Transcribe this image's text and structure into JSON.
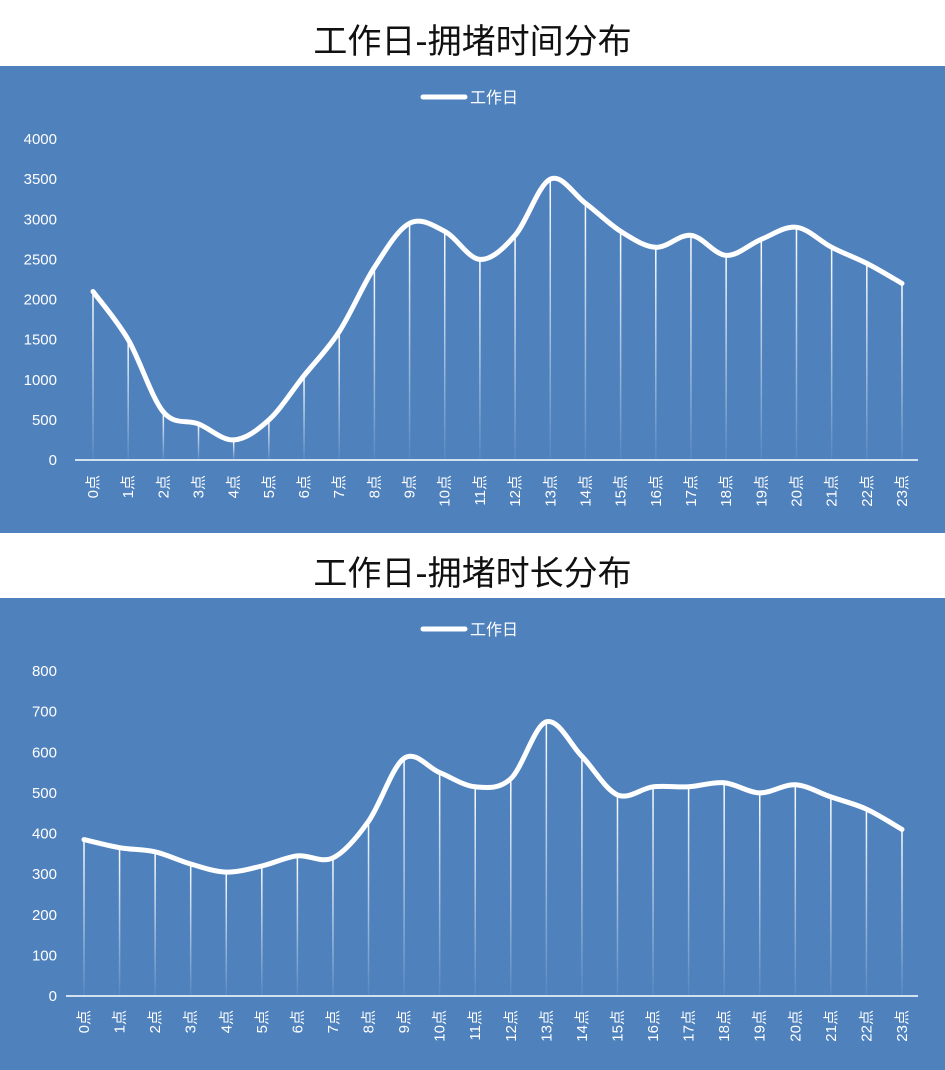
{
  "charts": [
    {
      "heading": "工作日-拥堵时间分布",
      "legend": "工作日",
      "chart_data": {
        "type": "line",
        "title": "工作日-拥堵时间分布",
        "categories": [
          "0点",
          "1点",
          "2点",
          "3点",
          "4点",
          "5点",
          "6点",
          "7点",
          "8点",
          "9点",
          "10点",
          "11点",
          "12点",
          "13点",
          "14点",
          "15点",
          "16点",
          "17点",
          "18点",
          "19点",
          "20点",
          "21点",
          "22点",
          "23点"
        ],
        "series": [
          {
            "name": "工作日",
            "values": [
              2100,
              1500,
              600,
              450,
              250,
              500,
              1050,
              1600,
              2400,
              2950,
              2850,
              2500,
              2800,
              3500,
              3200,
              2850,
              2650,
              2800,
              2550,
              2750,
              2900,
              2650,
              2450,
              2200
            ]
          }
        ],
        "ylim": [
          0,
          4000
        ],
        "yticks": [
          0,
          500,
          1000,
          1500,
          2000,
          2500,
          3000,
          3500,
          4000
        ],
        "legend_position": "top",
        "smooth": true,
        "drop_lines": true,
        "colors": {
          "background": "#4f81bd",
          "line": "#ffffff"
        }
      }
    },
    {
      "heading": "工作日-拥堵时长分布",
      "legend": "工作日",
      "chart_data": {
        "type": "line",
        "title": "工作日-拥堵时长分布",
        "categories": [
          "0点",
          "1点",
          "2点",
          "3点",
          "4点",
          "5点",
          "6点",
          "7点",
          "8点",
          "9点",
          "10点",
          "11点",
          "12点",
          "13点",
          "14点",
          "15点",
          "16点",
          "17点",
          "18点",
          "19点",
          "20点",
          "21点",
          "22点",
          "23点"
        ],
        "series": [
          {
            "name": "工作日",
            "values": [
              385,
              365,
              355,
              325,
              305,
              320,
              345,
              340,
              430,
              585,
              550,
              515,
              535,
              675,
              590,
              495,
              515,
              515,
              525,
              500,
              520,
              490,
              460,
              410
            ]
          }
        ],
        "ylim": [
          0,
          800
        ],
        "yticks": [
          0,
          100,
          200,
          300,
          400,
          500,
          600,
          700,
          800
        ],
        "legend_position": "top",
        "smooth": true,
        "drop_lines": true,
        "colors": {
          "background": "#4f81bd",
          "line": "#ffffff"
        }
      }
    }
  ]
}
